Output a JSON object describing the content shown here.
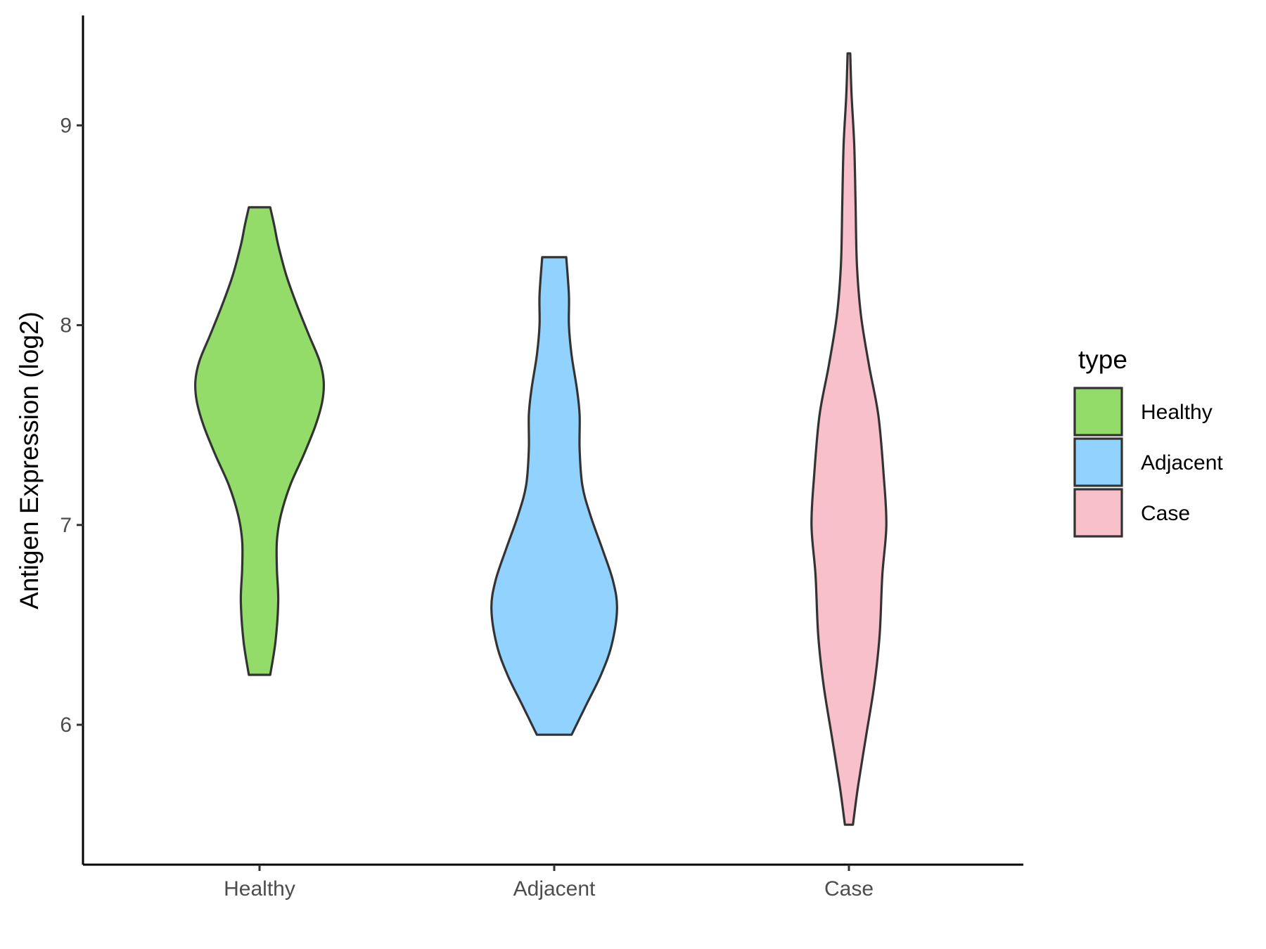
{
  "chart_data": {
    "type": "violin",
    "title": "",
    "xlabel": "",
    "ylabel": "Antigen Expression (log2)",
    "ylim": [
      5.3,
      9.55
    ],
    "yticks": [
      6,
      7,
      8,
      9
    ],
    "categories": [
      "Healthy",
      "Adjacent",
      "Case"
    ],
    "legend": {
      "title": "type",
      "position": "right"
    },
    "grid": false,
    "series": [
      {
        "name": "Healthy",
        "color": "#93dc6a",
        "min": 6.25,
        "max": 8.59,
        "profile": [
          [
            6.25,
            0.08
          ],
          [
            6.42,
            0.12
          ],
          [
            6.62,
            0.14
          ],
          [
            6.78,
            0.13
          ],
          [
            6.92,
            0.13
          ],
          [
            7.05,
            0.16
          ],
          [
            7.2,
            0.23
          ],
          [
            7.35,
            0.33
          ],
          [
            7.5,
            0.42
          ],
          [
            7.62,
            0.47
          ],
          [
            7.72,
            0.48
          ],
          [
            7.82,
            0.45
          ],
          [
            7.95,
            0.37
          ],
          [
            8.1,
            0.28
          ],
          [
            8.25,
            0.2
          ],
          [
            8.4,
            0.14
          ],
          [
            8.5,
            0.11
          ],
          [
            8.59,
            0.08
          ]
        ]
      },
      {
        "name": "Adjacent",
        "color": "#92d2fe",
        "min": 5.95,
        "max": 8.34,
        "profile": [
          [
            5.95,
            0.13
          ],
          [
            6.1,
            0.24
          ],
          [
            6.25,
            0.35
          ],
          [
            6.4,
            0.43
          ],
          [
            6.58,
            0.47
          ],
          [
            6.72,
            0.44
          ],
          [
            6.88,
            0.36
          ],
          [
            7.05,
            0.27
          ],
          [
            7.2,
            0.21
          ],
          [
            7.38,
            0.19
          ],
          [
            7.55,
            0.19
          ],
          [
            7.68,
            0.17
          ],
          [
            7.85,
            0.13
          ],
          [
            8.0,
            0.11
          ],
          [
            8.15,
            0.11
          ],
          [
            8.34,
            0.09
          ]
        ]
      },
      {
        "name": "Case",
        "color": "#f8c0cb",
        "min": 5.5,
        "max": 9.36,
        "profile": [
          [
            5.5,
            0.03
          ],
          [
            5.7,
            0.07
          ],
          [
            5.95,
            0.13
          ],
          [
            6.2,
            0.19
          ],
          [
            6.45,
            0.23
          ],
          [
            6.75,
            0.25
          ],
          [
            7.0,
            0.28
          ],
          [
            7.25,
            0.26
          ],
          [
            7.55,
            0.22
          ],
          [
            7.8,
            0.15
          ],
          [
            8.05,
            0.09
          ],
          [
            8.3,
            0.06
          ],
          [
            8.6,
            0.05
          ],
          [
            8.9,
            0.04
          ],
          [
            9.15,
            0.02
          ],
          [
            9.36,
            0.01
          ]
        ]
      }
    ]
  }
}
